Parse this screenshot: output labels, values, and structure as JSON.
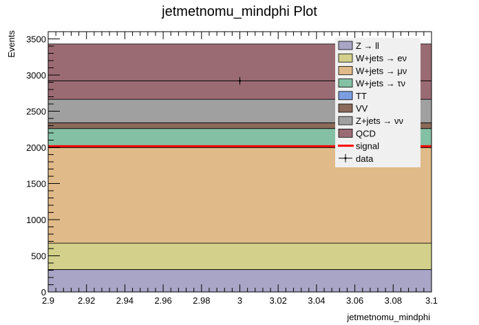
{
  "chart_data": {
    "type": "bar",
    "title": "jetmetnomu_mindphi Plot",
    "xlabel": "jetmetnomu_mindphi",
    "ylabel": "Events",
    "xlim": [
      2.9,
      3.1
    ],
    "ylim": [
      0,
      3600
    ],
    "x_ticks": [
      "2.9",
      "2.92",
      "2.94",
      "2.96",
      "2.98",
      "3",
      "3.02",
      "3.04",
      "3.06",
      "3.08",
      "3.1"
    ],
    "x_tick_values": [
      2.9,
      2.92,
      2.94,
      2.96,
      2.98,
      3.0,
      3.02,
      3.04,
      3.06,
      3.08,
      3.1
    ],
    "y_ticks": [
      "0",
      "500",
      "1000",
      "1500",
      "2000",
      "2500",
      "3000",
      "3500"
    ],
    "y_tick_values": [
      0,
      500,
      1000,
      1500,
      2000,
      2500,
      3000,
      3500
    ],
    "bin": [
      2.9,
      3.1
    ],
    "stack": [
      {
        "name": "Z → ll",
        "value": 310,
        "color": "#a8a5c6"
      },
      {
        "name": "W+jets → eν",
        "value": 365,
        "color": "#d2d08a"
      },
      {
        "name": "W+jets → μν",
        "value": 1320,
        "color": "#e0ba88"
      },
      {
        "name": "W+jets → τν",
        "value": 265,
        "color": "#84c1a4"
      },
      {
        "name": "TT",
        "value": 0,
        "color": "#7a9edf"
      },
      {
        "name": "VV",
        "value": 80,
        "color": "#8a6a5a"
      },
      {
        "name": "Z+jets → νν",
        "value": 325,
        "color": "#a0a0a0"
      },
      {
        "name": "QCD",
        "value": 765,
        "color": "#9b6b73"
      }
    ],
    "signal": {
      "name": "signal",
      "value": 2015,
      "color": "#ff0000"
    },
    "data": {
      "name": "data",
      "x": 3.0,
      "y": 2920,
      "yerr": 54,
      "xerr": 0.0
    },
    "legend_position": "top-right"
  }
}
